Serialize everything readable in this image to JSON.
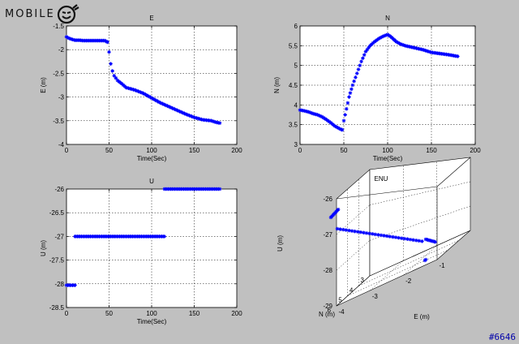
{
  "watermark": {
    "text": "MOBILE",
    "tag": "#6646"
  },
  "chart_data": [
    {
      "type": "scatter",
      "title": "E",
      "xlabel": "Time(Sec)",
      "ylabel": "E (m)",
      "xlim": [
        0,
        200
      ],
      "ylim": [
        -4,
        -1.5
      ],
      "xticks": [
        "0",
        "50",
        "100",
        "150",
        "200"
      ],
      "yticks": [
        "-4",
        "-3.5",
        "-3",
        "-2.5",
        "-2",
        "-1.5"
      ],
      "grid": true,
      "marker": "*",
      "color": "#0000ff",
      "segments": [
        {
          "x": [
            0,
            3,
            6,
            10,
            15,
            20,
            25,
            30,
            35,
            40,
            45,
            48
          ],
          "y": [
            -1.73,
            -1.76,
            -1.78,
            -1.8,
            -1.8,
            -1.81,
            -1.81,
            -1.81,
            -1.81,
            -1.81,
            -1.81,
            -1.84
          ]
        },
        {
          "x": [
            48,
            50,
            52,
            54,
            56,
            58,
            60,
            65,
            70,
            80,
            90,
            100,
            110,
            120,
            130,
            140,
            150,
            160,
            170,
            175,
            180
          ],
          "y": [
            -1.84,
            -2.05,
            -2.3,
            -2.45,
            -2.55,
            -2.6,
            -2.65,
            -2.72,
            -2.8,
            -2.85,
            -2.92,
            -3.02,
            -3.12,
            -3.2,
            -3.28,
            -3.36,
            -3.43,
            -3.48,
            -3.5,
            -3.53,
            -3.55
          ]
        }
      ]
    },
    {
      "type": "scatter",
      "title": "N",
      "xlabel": "Time(Sec)",
      "ylabel": "N (m)",
      "xlim": [
        0,
        200
      ],
      "ylim": [
        3,
        6
      ],
      "xticks": [
        "0",
        "50",
        "100",
        "150",
        "200"
      ],
      "yticks": [
        "3",
        "3.5",
        "4",
        "4.5",
        "5",
        "5.5",
        "6"
      ],
      "grid": true,
      "marker": "*",
      "color": "#0000ff",
      "segments": [
        {
          "x": [
            0,
            5,
            10,
            15,
            20,
            25,
            30,
            35,
            40,
            45,
            48
          ],
          "y": [
            3.87,
            3.85,
            3.82,
            3.78,
            3.75,
            3.7,
            3.63,
            3.55,
            3.46,
            3.4,
            3.37
          ]
        },
        {
          "x": [
            48,
            50,
            53,
            56,
            60,
            65,
            70,
            75,
            80,
            85,
            90,
            95,
            100,
            103,
            106,
            110,
            115,
            120,
            130,
            140,
            150,
            160,
            170,
            180
          ],
          "y": [
            3.37,
            3.6,
            3.9,
            4.2,
            4.5,
            4.8,
            5.1,
            5.35,
            5.5,
            5.6,
            5.68,
            5.74,
            5.78,
            5.74,
            5.68,
            5.6,
            5.54,
            5.5,
            5.45,
            5.4,
            5.33,
            5.3,
            5.27,
            5.23
          ]
        }
      ]
    },
    {
      "type": "scatter",
      "title": "U",
      "xlabel": "Time(Sec)",
      "ylabel": "U (m)",
      "xlim": [
        0,
        200
      ],
      "ylim": [
        -28.5,
        -26
      ],
      "xticks": [
        "0",
        "50",
        "100",
        "150",
        "200"
      ],
      "yticks": [
        "-28.5",
        "-28",
        "-27.5",
        "-27",
        "-26.5",
        "-26"
      ],
      "grid": true,
      "marker": "*",
      "color": "#0000ff",
      "segments": [
        {
          "x": [
            0,
            10
          ],
          "y": [
            -28.03,
            -28.03
          ]
        },
        {
          "x": [
            10,
            115
          ],
          "y": [
            -27.0,
            -27.0
          ]
        },
        {
          "x": [
            115,
            180
          ],
          "y": [
            -26.0,
            -26.0
          ]
        }
      ]
    },
    {
      "type": "scatter",
      "title": "ENU",
      "xlabel": "E (m)",
      "ylabel": "N (m)",
      "zlabel": "U (m)",
      "xticks": [
        "-4",
        "-3",
        "-2",
        "-1"
      ],
      "yticks": [
        "3",
        "4",
        "5",
        "6"
      ],
      "zticks": [
        "-29",
        "-28",
        "-27",
        "-26"
      ],
      "grid": true,
      "marker": "*",
      "color": "#0000ff"
    }
  ]
}
